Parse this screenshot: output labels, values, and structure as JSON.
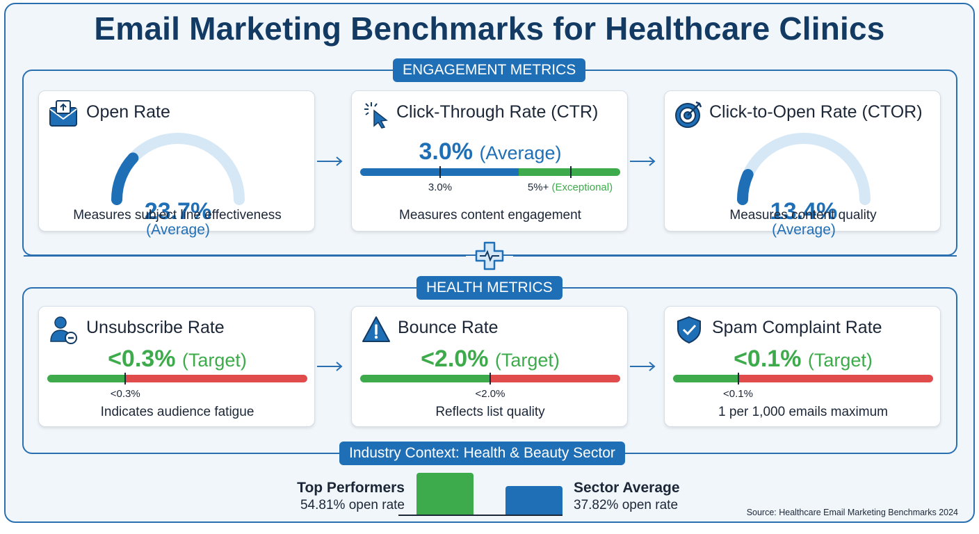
{
  "title": "Email Marketing Benchmarks for Healthcare Clinics",
  "sections": {
    "engagement": "ENGAGEMENT METRICS",
    "health": "HEALTH METRICS",
    "industry": "Industry Context: Health & Beauty Sector"
  },
  "colors": {
    "primary_blue": "#1f6fb6",
    "good_green": "#3dab4b",
    "bad_red": "#e04b4b",
    "gauge_track": "#d6e8f6"
  },
  "engagement_cards": [
    {
      "icon": "envelope-icon",
      "title": "Open Rate",
      "value": "23.7%",
      "value_note": "(Average)",
      "gauge_fraction": 0.237,
      "description": "Measures subject line effectiveness"
    },
    {
      "icon": "cursor-click-icon",
      "title": "Click-Through Rate (CTR)",
      "value": "3.0%",
      "value_note": "(Average)",
      "marker_avg": "3.0%",
      "marker_exceptional": "5%+",
      "marker_exceptional_note": "(Exceptional)",
      "description": "Measures content engagement"
    },
    {
      "icon": "target-icon",
      "title": "Click-to-Open Rate (CTOR)",
      "value": "13.4%",
      "value_note": "(Average)",
      "gauge_fraction": 0.134,
      "description": "Measures content quality"
    }
  ],
  "health_cards": [
    {
      "icon": "user-remove-icon",
      "title": "Unsubscribe Rate",
      "value": "<0.3%",
      "value_note": "(Target)",
      "marker": "<0.3%",
      "marker_fraction": 0.3,
      "description": "Indicates audience fatigue"
    },
    {
      "icon": "warning-icon",
      "title": "Bounce Rate",
      "value": "<2.0%",
      "value_note": "(Target)",
      "marker": "<2.0%",
      "marker_fraction": 0.5,
      "description": "Reflects list quality"
    },
    {
      "icon": "shield-check-icon",
      "title": "Spam Complaint Rate",
      "value": "<0.1%",
      "value_note": "(Target)",
      "marker": "<0.1%",
      "marker_fraction": 0.25,
      "description": "1 per 1,000 emails maximum"
    }
  ],
  "industry": {
    "top": {
      "label": "Top Performers",
      "value": "54.81% open rate",
      "rate": 54.81
    },
    "average": {
      "label": "Sector Average",
      "value": "37.82% open rate",
      "rate": 37.82
    }
  },
  "source": "Source: Healthcare Email Marketing Benchmarks 2024"
}
